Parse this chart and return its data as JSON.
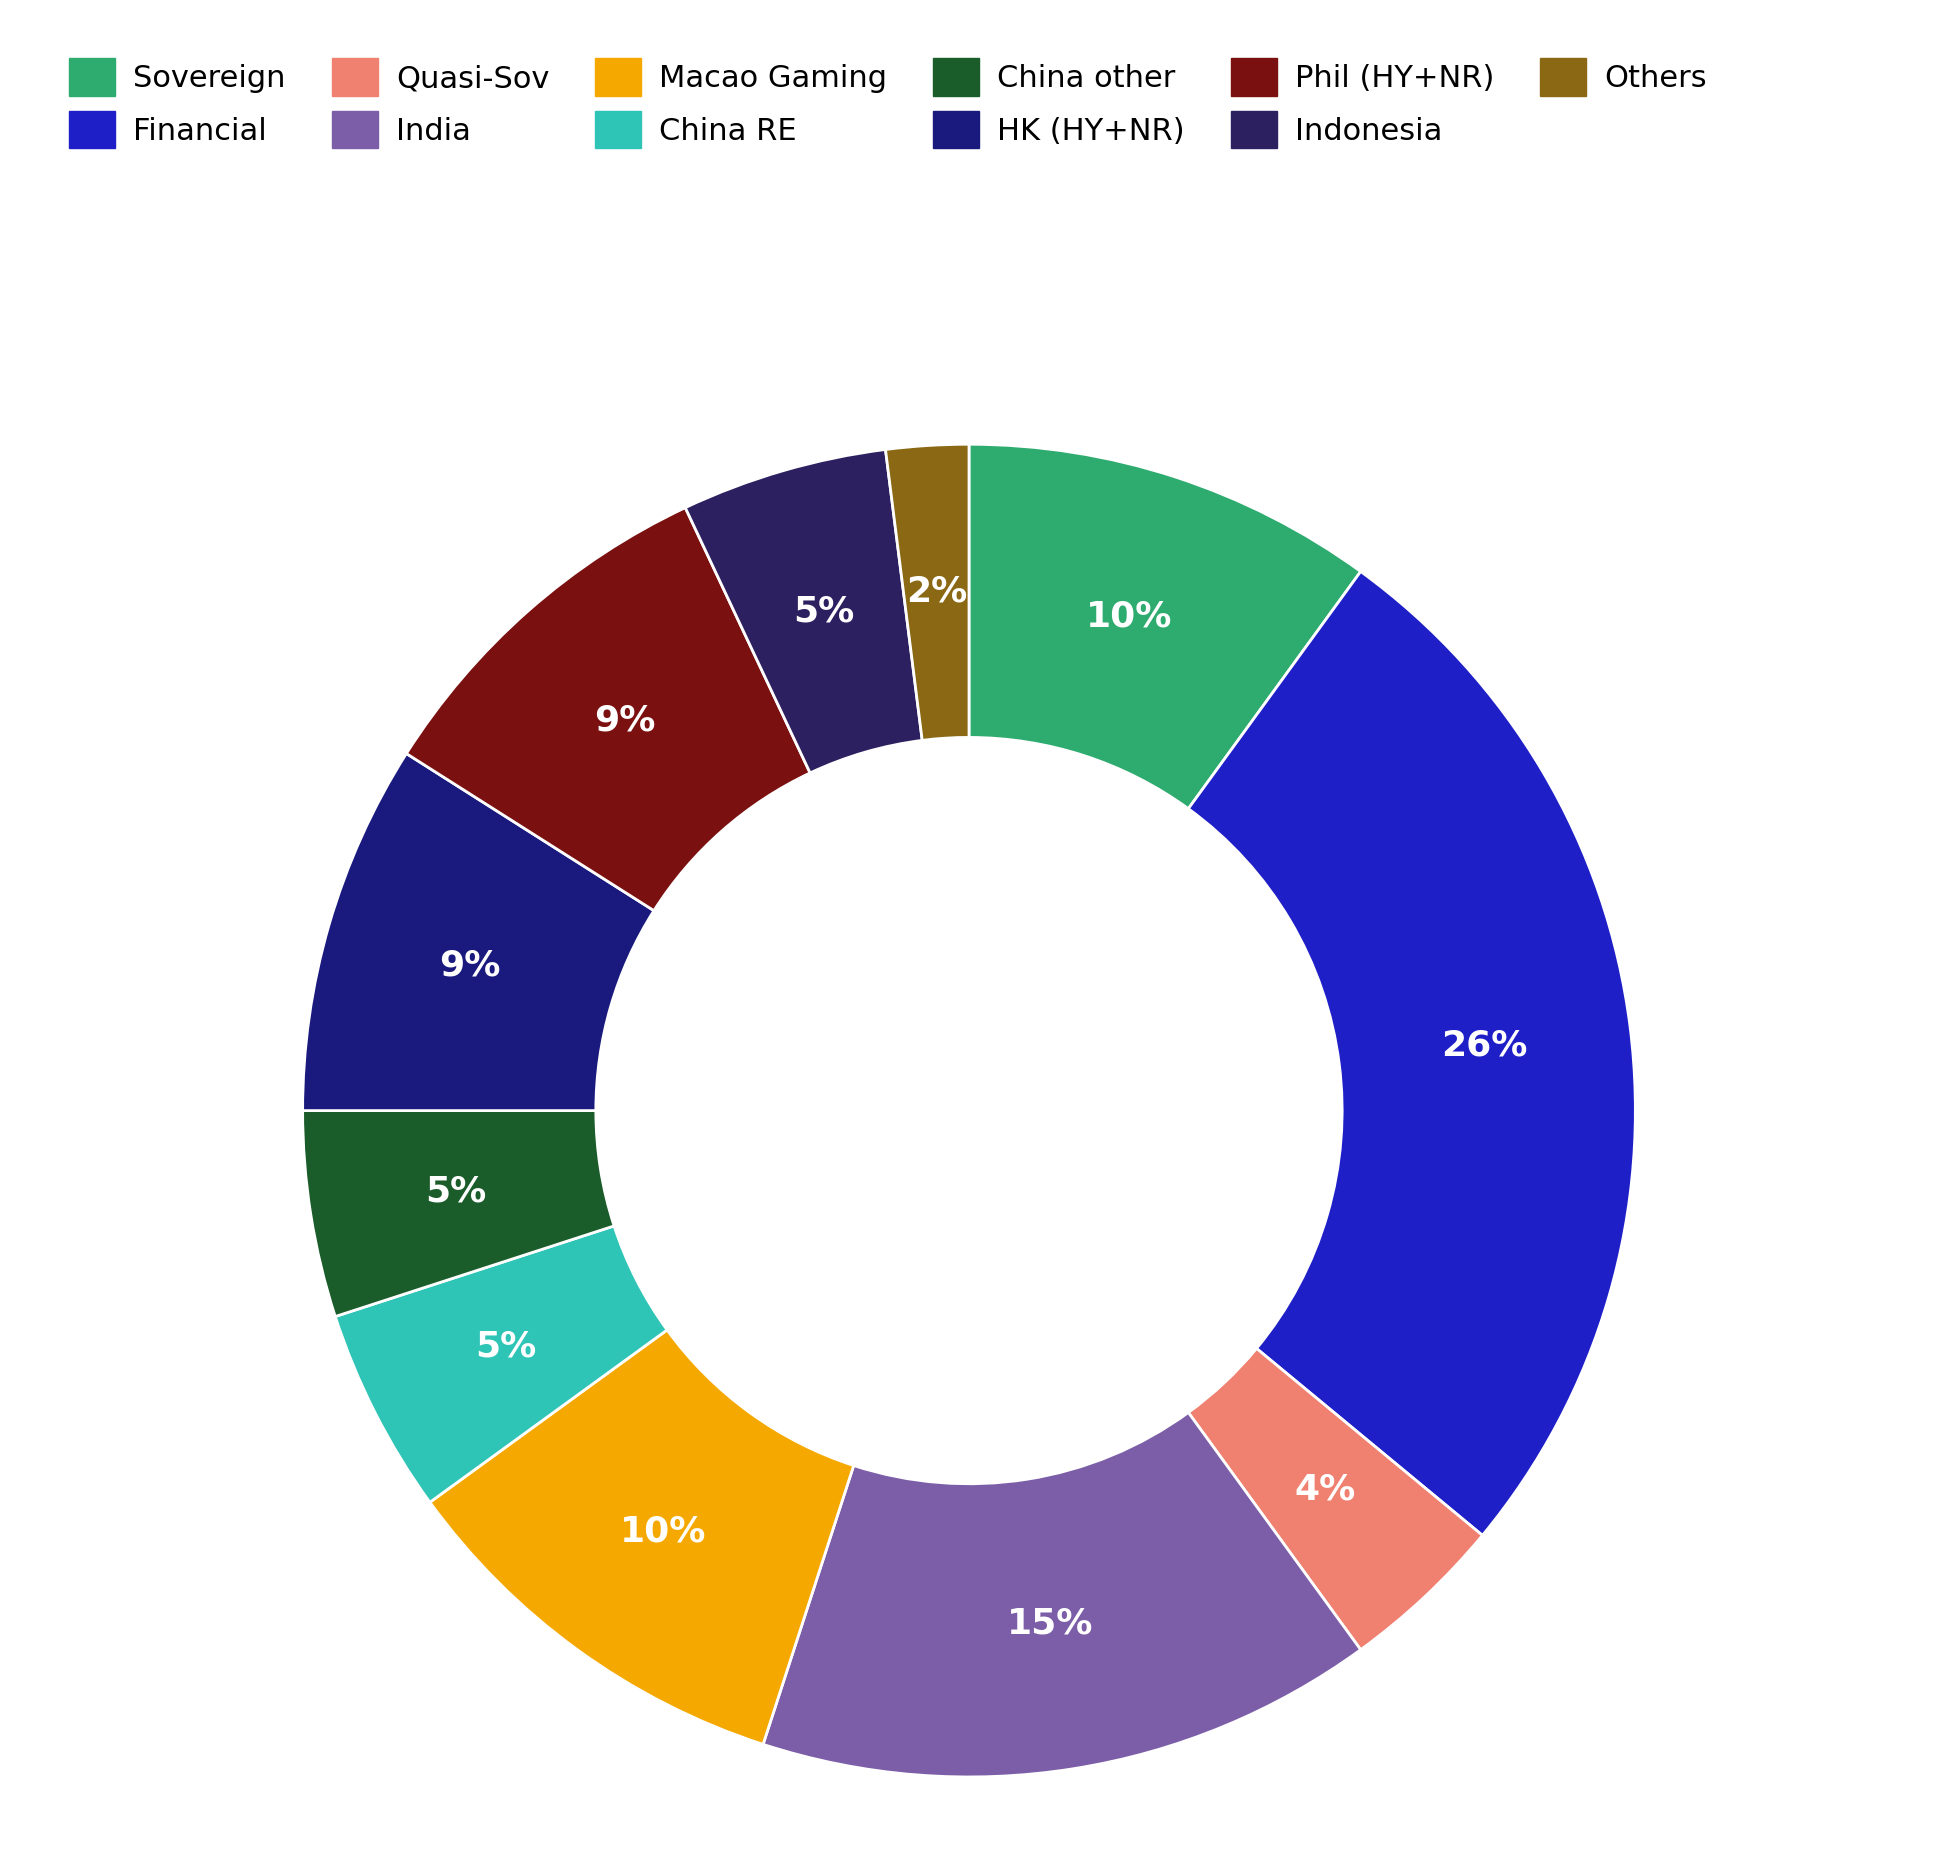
{
  "segments": [
    {
      "label": "Sovereign",
      "value": 10,
      "color": "#2eab6f"
    },
    {
      "label": "Financial",
      "value": 26,
      "color": "#1f1fc8"
    },
    {
      "label": "Quasi-Sov",
      "value": 4,
      "color": "#f08070"
    },
    {
      "label": "India",
      "value": 15,
      "color": "#7b5ea7"
    },
    {
      "label": "Macao Gaming",
      "value": 10,
      "color": "#f5a800"
    },
    {
      "label": "China RE",
      "value": 5,
      "color": "#2ec4b6"
    },
    {
      "label": "China other",
      "value": 5,
      "color": "#1a5c2a"
    },
    {
      "label": "HK (HY+NR)",
      "value": 9,
      "color": "#1a1a7e"
    },
    {
      "label": "Phil (HY+NR)",
      "value": 9,
      "color": "#7b1010"
    },
    {
      "label": "Indonesia",
      "value": 5,
      "color": "#2d2060"
    },
    {
      "label": "Others",
      "value": 2,
      "color": "#8b6914"
    }
  ],
  "legend_order": [
    "Sovereign",
    "Financial",
    "Quasi-Sov",
    "India",
    "Macao Gaming",
    "China RE",
    "China other",
    "HK (HY+NR)",
    "Phil (HY+NR)",
    "Indonesia",
    "Others"
  ],
  "label_fontsize": 26,
  "legend_fontsize": 22,
  "wedge_linewidth": 2.0,
  "wedge_linecolor": "#ffffff",
  "donut_width": 0.44,
  "start_angle": 90
}
